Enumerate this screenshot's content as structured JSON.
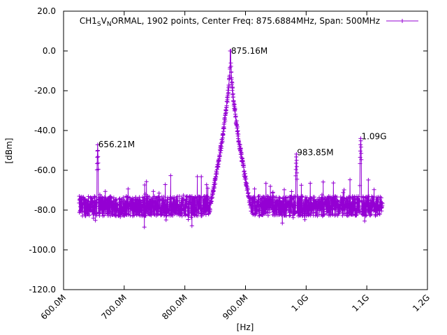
{
  "chart_data": {
    "type": "line",
    "legend": {
      "prefix": "CH1",
      "s_char": "S",
      "v_char": "V",
      "n_char": "N",
      "rest": "ORMAL, 1902 points, Center Freq: 875.6884MHz, Span: 500MHz",
      "color": "#9400d3",
      "placement": "top-right"
    },
    "xlabel": "[Hz]",
    "ylabel": "[dBm]",
    "xlim": [
      600000000,
      1200000000
    ],
    "ylim": [
      -120,
      20
    ],
    "x_ticks": [
      {
        "value": 600000000,
        "label": "600.0M"
      },
      {
        "value": 700000000,
        "label": "700.0M"
      },
      {
        "value": 800000000,
        "label": "800.0M"
      },
      {
        "value": 900000000,
        "label": "900.0M"
      },
      {
        "value": 1000000000,
        "label": "1.0G"
      },
      {
        "value": 1100000000,
        "label": "1.1G"
      },
      {
        "value": 1200000000,
        "label": "1.2G"
      }
    ],
    "y_ticks": [
      {
        "value": 20,
        "label": "20.0"
      },
      {
        "value": 0,
        "label": "0.0"
      },
      {
        "value": -20,
        "label": "-20.0"
      },
      {
        "value": -40,
        "label": "-40.0"
      },
      {
        "value": -60,
        "label": "-60.0"
      },
      {
        "value": -80,
        "label": "-80.0"
      },
      {
        "value": -100,
        "label": "-100.0"
      },
      {
        "value": -120,
        "label": "-120.0"
      }
    ],
    "series": [
      {
        "color": "#9400d3",
        "x_start": 625688400,
        "x_end": 1125688400,
        "points": 1902,
        "noise_floor_dbm": -78,
        "peaks": [
          {
            "x": 875160000,
            "y": 0
          },
          {
            "x": 656210000,
            "y": -47
          },
          {
            "x": 983850000,
            "y": -51
          },
          {
            "x": 1090000000,
            "y": -43
          }
        ]
      }
    ],
    "annotations": [
      {
        "x": 875160000,
        "y": 0,
        "text": "875.16M"
      },
      {
        "x": 656210000,
        "y": -47,
        "text": "656.21M"
      },
      {
        "x": 983850000,
        "y": -51,
        "text": "983.85M"
      },
      {
        "x": 1090000000,
        "y": -43,
        "text": "1.09G"
      }
    ],
    "grid": false
  }
}
